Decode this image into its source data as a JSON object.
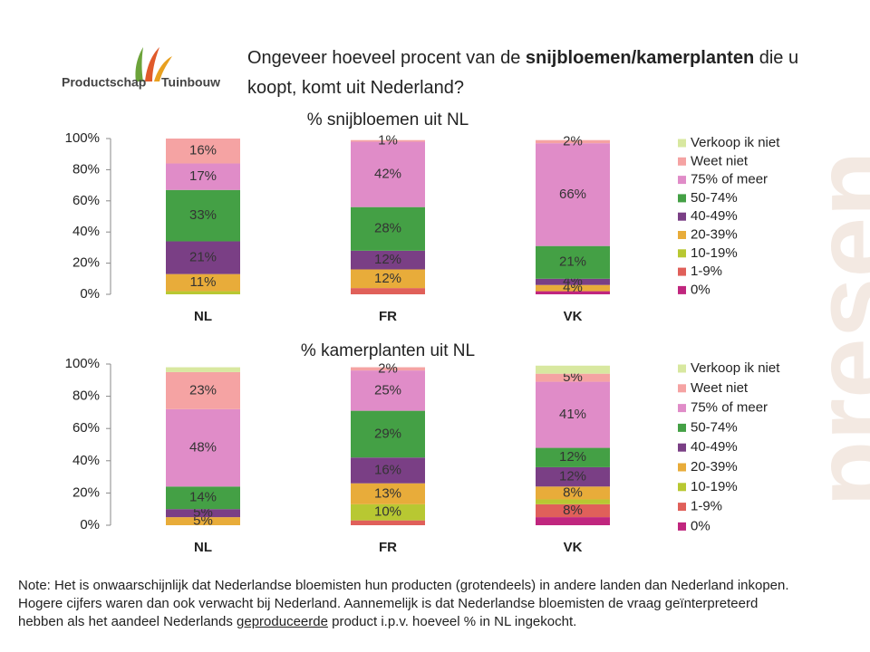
{
  "logo": {
    "left": "Productschap",
    "right": "Tuinbouw"
  },
  "header": {
    "title": [
      "Ongeveer hoeveel procent van de ",
      "snijbloemen/kamerplanten",
      " die u",
      "koopt, komt uit Nederland?"
    ]
  },
  "background_text": "presen",
  "chart_data": [
    {
      "type": "stacked-bar",
      "title": "% snijbloemen uit NL",
      "categories": [
        "NL",
        "FR",
        "VK"
      ],
      "ylim": [
        0,
        100
      ],
      "yticks": [
        {
          "value": 0,
          "label": "0%"
        },
        {
          "value": 20,
          "label": "20%"
        },
        {
          "value": 40,
          "label": "40%"
        },
        {
          "value": 60,
          "label": "60%"
        },
        {
          "value": 80,
          "label": "80%"
        },
        {
          "value": 100,
          "label": "100%"
        }
      ],
      "grid": false,
      "series": [
        {
          "name": "0%",
          "color": "#c0267e",
          "values": [
            0,
            0,
            2
          ],
          "value_labels": [
            null,
            null,
            null
          ]
        },
        {
          "name": "1-9%",
          "color": "#e0605a",
          "values": [
            0,
            4,
            0
          ],
          "value_labels": [
            null,
            null,
            null
          ]
        },
        {
          "name": "10-19%",
          "color": "#b8c832",
          "values": [
            2,
            0,
            0
          ],
          "value_labels": [
            null,
            null,
            null
          ]
        },
        {
          "name": "20-39%",
          "color": "#e8ac3a",
          "values": [
            11,
            12,
            4
          ],
          "value_labels": [
            "11%",
            "12%",
            "4%"
          ]
        },
        {
          "name": "40-49%",
          "color": "#7a3f85",
          "values": [
            21,
            12,
            4
          ],
          "value_labels": [
            "21%",
            "12%",
            "4%"
          ]
        },
        {
          "name": "50-74%",
          "color": "#44a045",
          "values": [
            33,
            28,
            21
          ],
          "value_labels": [
            "33%",
            "28%",
            "21%"
          ]
        },
        {
          "name": "75% of meer",
          "color": "#e08cc8",
          "values": [
            17,
            42,
            66
          ],
          "value_labels": [
            "17%",
            "42%",
            "66%"
          ]
        },
        {
          "name": "Weet niet",
          "color": "#f5a3a3",
          "values": [
            16,
            1,
            2
          ],
          "value_labels": [
            "16%",
            "1%",
            "2%"
          ]
        },
        {
          "name": "Verkoop ik niet",
          "color": "#d8e8a0",
          "values": [
            0,
            0,
            0
          ],
          "value_labels": [
            null,
            null,
            null
          ]
        }
      ]
    },
    {
      "type": "stacked-bar",
      "title": "% kamerplanten uit NL",
      "categories": [
        "NL",
        "FR",
        "VK"
      ],
      "ylim": [
        0,
        100
      ],
      "yticks": [
        {
          "value": 0,
          "label": "0%"
        },
        {
          "value": 20,
          "label": "20%"
        },
        {
          "value": 40,
          "label": "40%"
        },
        {
          "value": 60,
          "label": "60%"
        },
        {
          "value": 80,
          "label": "80%"
        },
        {
          "value": 100,
          "label": "100%"
        }
      ],
      "grid": false,
      "series": [
        {
          "name": "0%",
          "color": "#c0267e",
          "values": [
            0,
            0,
            5
          ],
          "value_labels": [
            null,
            null,
            null
          ]
        },
        {
          "name": "1-9%",
          "color": "#e0605a",
          "values": [
            0,
            3,
            8
          ],
          "value_labels": [
            null,
            null,
            "8%"
          ]
        },
        {
          "name": "10-19%",
          "color": "#b8c832",
          "values": [
            0,
            10,
            3
          ],
          "value_labels": [
            null,
            "10%",
            null
          ]
        },
        {
          "name": "20-39%",
          "color": "#e8ac3a",
          "values": [
            5,
            13,
            8
          ],
          "value_labels": [
            "5%",
            "13%",
            "8%"
          ]
        },
        {
          "name": "40-49%",
          "color": "#7a3f85",
          "values": [
            5,
            16,
            12
          ],
          "value_labels": [
            "5%",
            "16%",
            "12%"
          ]
        },
        {
          "name": "50-74%",
          "color": "#44a045",
          "values": [
            14,
            29,
            12
          ],
          "value_labels": [
            "14%",
            "29%",
            "12%"
          ]
        },
        {
          "name": "75% of meer",
          "color": "#e08cc8",
          "values": [
            48,
            25,
            41
          ],
          "value_labels": [
            "48%",
            "25%",
            "41%"
          ]
        },
        {
          "name": "Weet niet",
          "color": "#f5a3a3",
          "values": [
            23,
            2,
            5
          ],
          "value_labels": [
            "23%",
            "2%",
            "5%"
          ]
        },
        {
          "name": "Verkoop ik niet",
          "color": "#d8e8a0",
          "values": [
            3,
            0,
            5
          ],
          "value_labels": [
            null,
            null,
            null
          ]
        }
      ]
    }
  ],
  "note": [
    "Note: Het is onwaarschijnlijk dat Nederlandse bloemisten hun producten (grotendeels) in andere landen dan Nederland inkopen. Hogere cijfers waren dan ook verwacht bij Nederland. Aannemelijk is dat Nederlandse bloemisten de vraag geïnterpreteerd hebben als het aandeel Nederlands ",
    "geproduceerde",
    " product i.p.v. hoeveel % in NL ingekocht."
  ]
}
